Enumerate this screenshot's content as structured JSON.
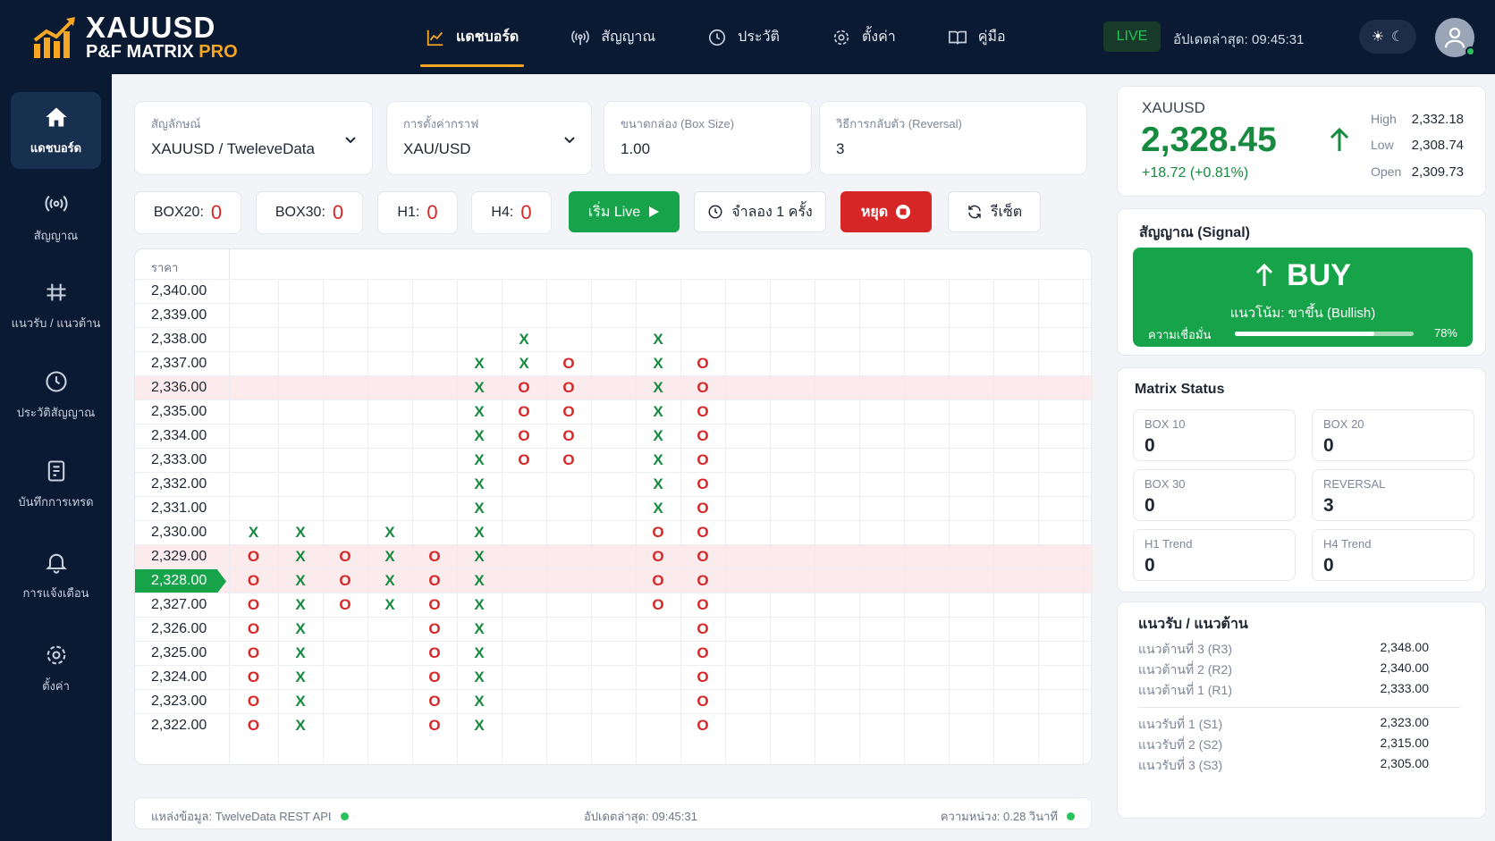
{
  "app": {
    "title_line1": "XAUUSD",
    "title_line2": "P&F MATRIX",
    "title_pro": "PRO"
  },
  "nav": [
    {
      "label": "แดชบอร์ด",
      "icon": "chart-line-icon",
      "active": true
    },
    {
      "label": "สัญญาณ",
      "icon": "broadcast-icon",
      "active": false
    },
    {
      "label": "ประวัติ",
      "icon": "history-icon",
      "active": false
    },
    {
      "label": "ตั้งค่า",
      "icon": "gear-icon",
      "active": false
    },
    {
      "label": "คู่มือ",
      "icon": "book-icon",
      "active": false
    }
  ],
  "header": {
    "live": "LIVE",
    "last_update": "อัปเดตล่าสุด: 09:45:31"
  },
  "sidebar": [
    {
      "label": "แดชบอร์ด",
      "icon": "home-icon",
      "active": true
    },
    {
      "label": "สัญญาณ",
      "icon": "broadcast-icon",
      "active": false
    },
    {
      "label": "แนวรับ / แนวต้าน",
      "icon": "levels-icon",
      "active": false
    },
    {
      "label": "ประวัติสัญญาณ",
      "icon": "history-icon",
      "active": false
    },
    {
      "label": "บันทึกการเทรด",
      "icon": "journal-icon",
      "active": false
    },
    {
      "label": "การแจ้งเตือน",
      "icon": "bell-icon",
      "active": false
    },
    {
      "label": "ตั้งค่า",
      "icon": "gear-icon",
      "active": false
    }
  ],
  "controls": {
    "symbol_label": "สัญลักษณ์",
    "symbol_value": "XAUUSD / TweleveData",
    "chart_label": "การตั้งค่ากราฟ",
    "chart_value": "XAU/USD",
    "box_label": "ขนาดกล่อง (Box Size)",
    "box_value": "1.00",
    "rev_label": "วิธีการกลับตัว (Reversal)",
    "rev_value": "3"
  },
  "stats": [
    {
      "label": "BOX20:",
      "value": "0"
    },
    {
      "label": "BOX30:",
      "value": "0"
    },
    {
      "label": "H1:",
      "value": "0"
    },
    {
      "label": "H4:",
      "value": "0"
    }
  ],
  "buttons": {
    "live": "เริ่ม Live",
    "simulate": "จำลอง 1 ครั้ง",
    "stop": "หยุด",
    "reset": "รีเซ็ต"
  },
  "grid": {
    "header": "ราคา",
    "current_price": "2,328.00",
    "prices": [
      "2,340.00",
      "2,339.00",
      "2,338.00",
      "2,337.00",
      "2,336.00",
      "2,335.00",
      "2,334.00",
      "2,333.00",
      "2,332.00",
      "2,331.00",
      "2,330.00",
      "2,329.00",
      "2,328.00",
      "2,327.00",
      "2,326.00",
      "2,325.00",
      "2,324.00",
      "2,323.00",
      "2,322.00"
    ],
    "highlight_rows": [
      4,
      11,
      12
    ],
    "current_row": 12,
    "marks": [
      {
        "row": 2,
        "col": 6,
        "type": "X"
      },
      {
        "row": 2,
        "col": 9,
        "type": "X"
      },
      {
        "row": 3,
        "col": 5,
        "type": "X"
      },
      {
        "row": 3,
        "col": 6,
        "type": "X"
      },
      {
        "row": 3,
        "col": 7,
        "type": "O"
      },
      {
        "row": 3,
        "col": 9,
        "type": "X"
      },
      {
        "row": 3,
        "col": 10,
        "type": "O"
      },
      {
        "row": 4,
        "col": 5,
        "type": "X"
      },
      {
        "row": 4,
        "col": 6,
        "type": "O"
      },
      {
        "row": 4,
        "col": 7,
        "type": "O"
      },
      {
        "row": 4,
        "col": 9,
        "type": "X"
      },
      {
        "row": 4,
        "col": 10,
        "type": "O"
      },
      {
        "row": 5,
        "col": 5,
        "type": "X"
      },
      {
        "row": 5,
        "col": 6,
        "type": "O"
      },
      {
        "row": 5,
        "col": 7,
        "type": "O"
      },
      {
        "row": 5,
        "col": 9,
        "type": "X"
      },
      {
        "row": 5,
        "col": 10,
        "type": "O"
      },
      {
        "row": 6,
        "col": 5,
        "type": "X"
      },
      {
        "row": 6,
        "col": 6,
        "type": "O"
      },
      {
        "row": 6,
        "col": 7,
        "type": "O"
      },
      {
        "row": 6,
        "col": 9,
        "type": "X"
      },
      {
        "row": 6,
        "col": 10,
        "type": "O"
      },
      {
        "row": 7,
        "col": 5,
        "type": "X"
      },
      {
        "row": 7,
        "col": 6,
        "type": "O"
      },
      {
        "row": 7,
        "col": 7,
        "type": "O"
      },
      {
        "row": 7,
        "col": 9,
        "type": "X"
      },
      {
        "row": 7,
        "col": 10,
        "type": "O"
      },
      {
        "row": 8,
        "col": 5,
        "type": "X"
      },
      {
        "row": 8,
        "col": 9,
        "type": "X"
      },
      {
        "row": 8,
        "col": 10,
        "type": "O"
      },
      {
        "row": 9,
        "col": 5,
        "type": "X"
      },
      {
        "row": 9,
        "col": 9,
        "type": "X"
      },
      {
        "row": 9,
        "col": 10,
        "type": "O"
      },
      {
        "row": 10,
        "col": 0,
        "type": "X"
      },
      {
        "row": 10,
        "col": 1,
        "type": "X"
      },
      {
        "row": 10,
        "col": 3,
        "type": "X"
      },
      {
        "row": 10,
        "col": 5,
        "type": "X"
      },
      {
        "row": 10,
        "col": 9,
        "type": "O"
      },
      {
        "row": 10,
        "col": 10,
        "type": "O"
      },
      {
        "row": 11,
        "col": 0,
        "type": "O"
      },
      {
        "row": 11,
        "col": 1,
        "type": "X"
      },
      {
        "row": 11,
        "col": 2,
        "type": "O"
      },
      {
        "row": 11,
        "col": 3,
        "type": "X"
      },
      {
        "row": 11,
        "col": 4,
        "type": "O"
      },
      {
        "row": 11,
        "col": 5,
        "type": "X"
      },
      {
        "row": 11,
        "col": 9,
        "type": "O"
      },
      {
        "row": 11,
        "col": 10,
        "type": "O"
      },
      {
        "row": 12,
        "col": 0,
        "type": "O"
      },
      {
        "row": 12,
        "col": 1,
        "type": "X"
      },
      {
        "row": 12,
        "col": 2,
        "type": "O"
      },
      {
        "row": 12,
        "col": 3,
        "type": "X"
      },
      {
        "row": 12,
        "col": 4,
        "type": "O"
      },
      {
        "row": 12,
        "col": 5,
        "type": "X"
      },
      {
        "row": 12,
        "col": 9,
        "type": "O"
      },
      {
        "row": 12,
        "col": 10,
        "type": "O"
      },
      {
        "row": 13,
        "col": 0,
        "type": "O"
      },
      {
        "row": 13,
        "col": 1,
        "type": "X"
      },
      {
        "row": 13,
        "col": 2,
        "type": "O"
      },
      {
        "row": 13,
        "col": 3,
        "type": "X"
      },
      {
        "row": 13,
        "col": 4,
        "type": "O"
      },
      {
        "row": 13,
        "col": 5,
        "type": "X"
      },
      {
        "row": 13,
        "col": 9,
        "type": "O"
      },
      {
        "row": 13,
        "col": 10,
        "type": "O"
      },
      {
        "row": 14,
        "col": 0,
        "type": "O"
      },
      {
        "row": 14,
        "col": 1,
        "type": "X"
      },
      {
        "row": 14,
        "col": 4,
        "type": "O"
      },
      {
        "row": 14,
        "col": 5,
        "type": "X"
      },
      {
        "row": 14,
        "col": 10,
        "type": "O"
      },
      {
        "row": 15,
        "col": 0,
        "type": "O"
      },
      {
        "row": 15,
        "col": 1,
        "type": "X"
      },
      {
        "row": 15,
        "col": 4,
        "type": "O"
      },
      {
        "row": 15,
        "col": 5,
        "type": "X"
      },
      {
        "row": 15,
        "col": 10,
        "type": "O"
      },
      {
        "row": 16,
        "col": 0,
        "type": "O"
      },
      {
        "row": 16,
        "col": 1,
        "type": "X"
      },
      {
        "row": 16,
        "col": 4,
        "type": "O"
      },
      {
        "row": 16,
        "col": 5,
        "type": "X"
      },
      {
        "row": 16,
        "col": 10,
        "type": "O"
      },
      {
        "row": 17,
        "col": 0,
        "type": "O"
      },
      {
        "row": 17,
        "col": 1,
        "type": "X"
      },
      {
        "row": 17,
        "col": 4,
        "type": "O"
      },
      {
        "row": 17,
        "col": 5,
        "type": "X"
      },
      {
        "row": 17,
        "col": 10,
        "type": "O"
      },
      {
        "row": 18,
        "col": 0,
        "type": "O"
      },
      {
        "row": 18,
        "col": 1,
        "type": "X"
      },
      {
        "row": 18,
        "col": 4,
        "type": "O"
      },
      {
        "row": 18,
        "col": 5,
        "type": "X"
      },
      {
        "row": 18,
        "col": 10,
        "type": "O"
      }
    ]
  },
  "footer": {
    "source": "แหล่งข้อมูล: TwelveData REST API",
    "updated": "อัปเดตล่าสุด: 09:45:31",
    "latency": "ความหน่วง: 0.28 วินาที"
  },
  "quote": {
    "symbol": "XAUUSD",
    "price": "2,328.45",
    "change": "+18.72 (+0.81%)",
    "high_label": "High",
    "high": "2,332.18",
    "low_label": "Low",
    "low": "2,308.74",
    "open_label": "Open",
    "open": "2,309.73"
  },
  "signal": {
    "title": "สัญญาณ (Signal)",
    "action": "BUY",
    "trend": "แนวโน้ม: ขาขึ้น (Bullish)",
    "confidence_label": "ความเชื่อมั่น",
    "confidence": "78%",
    "confidence_value": 0.78
  },
  "matrix": {
    "title": "Matrix Status",
    "tiles": [
      {
        "label": "BOX 10",
        "value": "0"
      },
      {
        "label": "BOX 20",
        "value": "0"
      },
      {
        "label": "BOX 30",
        "value": "0"
      },
      {
        "label": "REVERSAL",
        "value": "3"
      },
      {
        "label": "H1 Trend",
        "value": "0"
      },
      {
        "label": "H4 Trend",
        "value": "0"
      }
    ]
  },
  "sr": {
    "title": "แนวรับ / แนวต้าน",
    "resistance": [
      {
        "label": "แนวต้านที่ 3 (R3)",
        "value": "2,348.00"
      },
      {
        "label": "แนวต้านที่ 2 (R2)",
        "value": "2,340.00"
      },
      {
        "label": "แนวต้านที่ 1 (R1)",
        "value": "2,333.00"
      }
    ],
    "support": [
      {
        "label": "แนวรับที่ 1 (S1)",
        "value": "2,323.00"
      },
      {
        "label": "แนวรับที่ 2 (S2)",
        "value": "2,315.00"
      },
      {
        "label": "แนวรับที่ 3 (S3)",
        "value": "2,305.00"
      }
    ]
  },
  "colors": {
    "navy": "#0b1a33",
    "green": "#17a34a",
    "red": "#d62626",
    "gold": "#f5a623"
  }
}
